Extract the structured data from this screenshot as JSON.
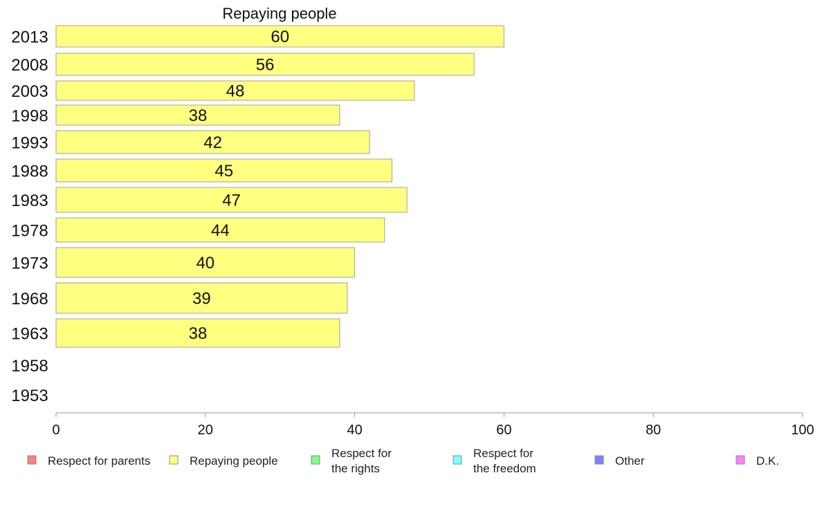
{
  "chart_data": {
    "type": "bar",
    "orientation": "horizontal",
    "title": "Repaying people",
    "categories": [
      "2013",
      "2008",
      "2003",
      "1998",
      "1993",
      "1988",
      "1983",
      "1978",
      "1973",
      "1968",
      "1963",
      "1958",
      "1953"
    ],
    "series": [
      {
        "name": "Repaying people",
        "color": "#ffff80",
        "values": [
          60,
          56,
          48,
          38,
          42,
          45,
          47,
          44,
          40,
          39,
          38,
          null,
          null
        ]
      }
    ],
    "xlim": [
      0,
      100
    ],
    "xticks": [
      "0",
      "20",
      "40",
      "60",
      "80",
      "100"
    ],
    "legend": {
      "placement": "bottom",
      "items": [
        {
          "lines": [
            "Respect for parents"
          ],
          "color": "#ff8080"
        },
        {
          "lines": [
            "Repaying people"
          ],
          "color": "#ffff80"
        },
        {
          "lines": [
            "Respect for",
            "the rights"
          ],
          "color": "#80ff80"
        },
        {
          "lines": [
            "Respect for",
            "the freedom"
          ],
          "color": "#80ffff"
        },
        {
          "lines": [
            "Other"
          ],
          "color": "#8080ff"
        },
        {
          "lines": [
            "D.K."
          ],
          "color": "#ff80ff"
        }
      ]
    }
  }
}
